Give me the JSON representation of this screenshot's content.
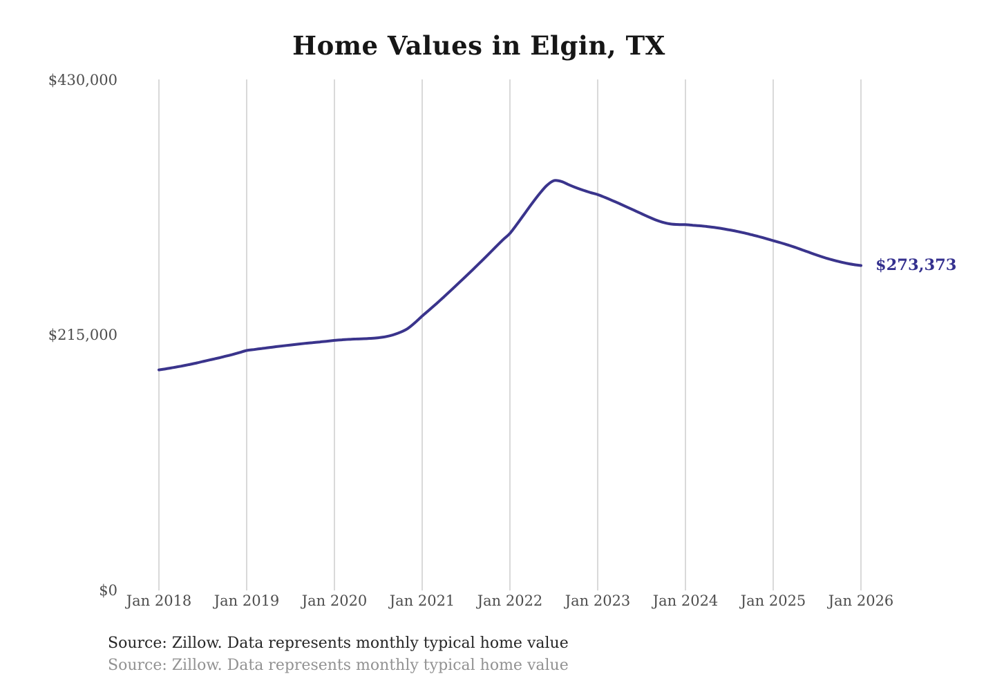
{
  "title": "Home Values in Elgin, TX",
  "end_value_label": "$273,373",
  "source_note": "Source: Zillow. Data represents monthly typical home value",
  "colors": {
    "line": "#3a348c",
    "grid": "#c9c9c9",
    "title_text": "#161616",
    "axis_text": "#4d4d4d",
    "end_label_text": "#34308e",
    "source_text": "#262626",
    "background": "#ffffff"
  },
  "chart_data": {
    "type": "line",
    "title": "Home Values in Elgin, TX",
    "xlabel": "",
    "ylabel": "",
    "ylim": [
      0,
      430000
    ],
    "grid": "vertical-only",
    "legend": "none",
    "y_ticks": [
      {
        "value": 0,
        "label": "$0"
      },
      {
        "value": 215000,
        "label": "$215,000"
      },
      {
        "value": 430000,
        "label": "$430,000"
      }
    ],
    "x_tick_labels": [
      "Jan 2018",
      "Jan 2019",
      "Jan 2020",
      "Jan 2021",
      "Jan 2022",
      "Jan 2023",
      "Jan 2024",
      "Jan 2025",
      "Jan 2026"
    ],
    "x_range": {
      "start": "Jan 2018",
      "end": "Jan 2026",
      "frequency": "monthly",
      "points": 97
    },
    "series": [
      {
        "name": "Typical home value",
        "values": [
          185600,
          186500,
          187600,
          188700,
          189900,
          191200,
          192600,
          194000,
          195400,
          196900,
          198400,
          200100,
          201900,
          202700,
          203500,
          204300,
          205100,
          205800,
          206500,
          207200,
          207900,
          208500,
          209100,
          209700,
          210400,
          210900,
          211300,
          211600,
          211800,
          212100,
          212600,
          213500,
          215000,
          217200,
          220300,
          225200,
          230900,
          236200,
          241600,
          247200,
          252900,
          258700,
          264500,
          270400,
          276400,
          282500,
          288700,
          294800,
          300500,
          308500,
          317000,
          325500,
          333500,
          340500,
          344800,
          344200,
          341500,
          339000,
          336800,
          334800,
          333100,
          330700,
          328100,
          325400,
          322600,
          319800,
          317000,
          314200,
          311600,
          309600,
          308300,
          307900,
          307800,
          307300,
          306800,
          306200,
          305400,
          304500,
          303400,
          302200,
          300900,
          299400,
          297800,
          296100,
          294300,
          292600,
          290700,
          288700,
          286500,
          284300,
          282100,
          280100,
          278300,
          276700,
          275300,
          274200,
          273373
        ]
      }
    ],
    "end_value": 273373
  }
}
